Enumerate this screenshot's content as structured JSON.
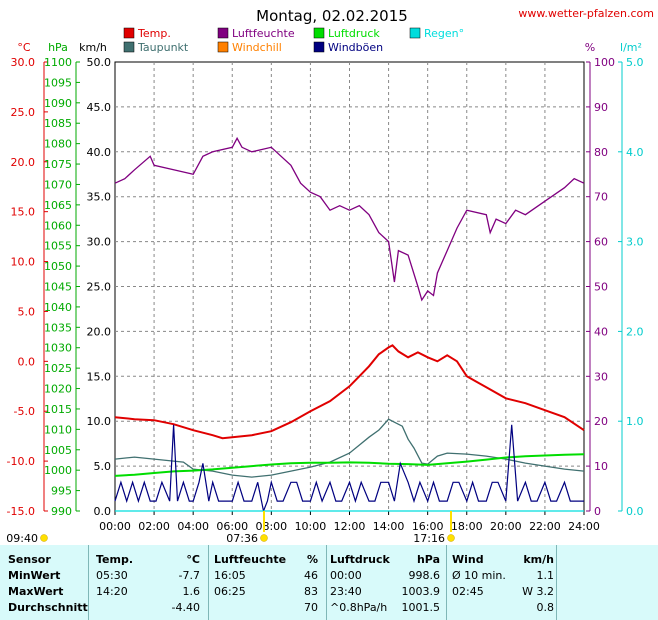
{
  "header": {
    "title": "Montag, 02.02.2015",
    "site": "www.wetter-pfalzen.com"
  },
  "legend": [
    {
      "label": "Temp.",
      "color": "#e00000"
    },
    {
      "label": "Luftfeuchte",
      "color": "#800080"
    },
    {
      "label": "Luftdruck",
      "color": "#00dd00"
    },
    {
      "label": "Regen°",
      "color": "#00dddd"
    },
    {
      "label": "Taupunkt",
      "color": "#407070"
    },
    {
      "label": "Windchill",
      "color": "#ff8000"
    },
    {
      "label": "Windböen",
      "color": "#000080"
    }
  ],
  "axes": {
    "temp": {
      "unit": "°C",
      "color": "#e00000",
      "min": -15,
      "max": 30,
      "ticks": [
        "30.0",
        "25.0",
        "20.0",
        "15.0",
        "10.0",
        "5.0",
        "0.0",
        "-5.0",
        "-10.0",
        "-15.0"
      ]
    },
    "pressure": {
      "unit": "hPa",
      "color": "#00aa00",
      "min": 990,
      "max": 1100,
      "ticks": [
        "1100",
        "1095",
        "1090",
        "1085",
        "1080",
        "1075",
        "1070",
        "1065",
        "1060",
        "1055",
        "1050",
        "1045",
        "1040",
        "1035",
        "1030",
        "1025",
        "1020",
        "1015",
        "1010",
        "1005",
        "1000",
        "995",
        "990"
      ]
    },
    "wind": {
      "unit": "km/h",
      "color": "#000000",
      "min": 0,
      "max": 50,
      "ticks": [
        "50.0",
        "45.0",
        "40.0",
        "35.0",
        "30.0",
        "25.0",
        "20.0",
        "15.0",
        "10.0",
        "5.0",
        "0.0"
      ]
    },
    "humidity": {
      "unit": "%",
      "color": "#800080",
      "min": 0,
      "max": 100,
      "ticks": [
        "100",
        "90",
        "80",
        "70",
        "60",
        "50",
        "40",
        "30",
        "20",
        "10",
        "0"
      ]
    },
    "rain": {
      "unit": "l/m²",
      "color": "#00cccc",
      "min": 0,
      "max": 5,
      "ticks": [
        "5.0",
        "4.0",
        "3.0",
        "2.0",
        "1.0",
        "0.0"
      ]
    },
    "time": {
      "ticks": [
        "00:00",
        "02:00",
        "04:00",
        "06:00",
        "08:00",
        "10:00",
        "12:00",
        "14:00",
        "16:00",
        "18:00",
        "20:00",
        "22:00",
        "24:00"
      ]
    }
  },
  "sun": {
    "moon_time": "09:40",
    "sunrise": "07:36",
    "sunset": "17:16",
    "moon_color": "#ffd000",
    "sun_color": "#ffe000"
  },
  "chart_data": {
    "type": "line",
    "x_unit": "hours",
    "xlim": [
      0,
      24
    ],
    "series": [
      {
        "name": "Temp.",
        "axis": "temp",
        "color": "#e00000",
        "x": [
          0,
          1,
          2,
          3,
          4,
          5,
          5.5,
          6,
          7,
          8,
          9,
          10,
          11,
          12,
          12.5,
          13,
          13.5,
          14,
          14.2,
          14.5,
          15,
          15.5,
          16,
          16.5,
          17,
          17.5,
          18,
          19,
          20,
          21,
          22,
          23,
          24
        ],
        "y": [
          -5.6,
          -5.8,
          -5.9,
          -6.3,
          -6.9,
          -7.4,
          -7.7,
          -7.6,
          -7.4,
          -7.0,
          -6.1,
          -5.0,
          -4.0,
          -2.5,
          -1.5,
          -0.5,
          0.7,
          1.4,
          1.6,
          1.0,
          0.4,
          0.9,
          0.4,
          0.0,
          0.6,
          0.0,
          -1.5,
          -2.6,
          -3.7,
          -4.2,
          -4.9,
          -5.6,
          -6.9
        ]
      },
      {
        "name": "Taupunkt",
        "axis": "temp",
        "color": "#407070",
        "x": [
          0,
          1,
          2,
          3,
          3.5,
          4,
          5,
          6,
          7,
          8,
          9,
          10,
          11,
          12,
          12.5,
          13,
          13.5,
          14,
          14.3,
          14.7,
          15,
          15.3,
          15.7,
          16,
          16.5,
          17,
          18,
          19,
          20,
          21,
          22,
          23,
          24
        ],
        "y": [
          -9.8,
          -9.6,
          -9.8,
          -10.0,
          -10.1,
          -10.8,
          -11.0,
          -11.4,
          -11.6,
          -11.4,
          -11.0,
          -10.6,
          -10.1,
          -9.2,
          -8.4,
          -7.6,
          -6.9,
          -5.8,
          -6.1,
          -6.5,
          -7.8,
          -8.7,
          -10.2,
          -10.3,
          -9.5,
          -9.2,
          -9.3,
          -9.5,
          -9.8,
          -10.2,
          -10.5,
          -10.8,
          -11.0
        ]
      },
      {
        "name": "Luftfeuchte",
        "axis": "humidity",
        "color": "#800080",
        "x": [
          0,
          0.5,
          1,
          1.8,
          2,
          3,
          4,
          4.5,
          5,
          6,
          6.25,
          6.5,
          7,
          8,
          8.5,
          9,
          9.5,
          10,
          10.5,
          11,
          11.5,
          12,
          12.5,
          13,
          13.5,
          14,
          14.3,
          14.5,
          15,
          15.5,
          15.7,
          16,
          16.3,
          16.5,
          17,
          17.5,
          18,
          19,
          19.2,
          19.5,
          20,
          20.5,
          21,
          22,
          23,
          23.5,
          24
        ],
        "y": [
          73,
          74,
          76,
          79,
          77,
          76,
          75,
          79,
          80,
          81,
          83,
          81,
          80,
          81,
          79,
          77,
          73,
          71,
          70,
          67,
          68,
          67,
          68,
          66,
          62,
          60,
          51,
          58,
          57,
          50,
          47,
          49,
          48,
          53,
          58,
          63,
          67,
          66,
          62,
          65,
          64,
          67,
          66,
          69,
          72,
          74,
          73
        ]
      },
      {
        "name": "Luftdruck",
        "axis": "pressure",
        "color": "#00dd00",
        "x": [
          0,
          1,
          2,
          3,
          4,
          5,
          6,
          7,
          8,
          9,
          10,
          11,
          12,
          13,
          14,
          15,
          16,
          17,
          18,
          19,
          20,
          21,
          22,
          23,
          24
        ],
        "y": [
          998.6,
          998.9,
          999.3,
          999.7,
          999.9,
          1000.2,
          1000.6,
          1001.0,
          1001.4,
          1001.7,
          1001.8,
          1001.8,
          1001.9,
          1001.8,
          1001.6,
          1001.5,
          1001.3,
          1001.7,
          1002.1,
          1002.6,
          1003.1,
          1003.4,
          1003.6,
          1003.8,
          1003.9
        ]
      },
      {
        "name": "Windböen",
        "axis": "wind",
        "color": "#000080",
        "x": [
          0,
          0.3,
          0.6,
          0.9,
          1.2,
          1.5,
          1.8,
          2.1,
          2.4,
          2.8,
          3.0,
          3.2,
          3.5,
          3.8,
          4.0,
          4.3,
          4.5,
          4.8,
          5.0,
          5.3,
          5.6,
          6.0,
          6.3,
          6.6,
          7.0,
          7.3,
          7.6,
          7.8,
          8.0,
          8.3,
          8.6,
          9.0,
          9.3,
          9.6,
          10.0,
          10.3,
          10.6,
          11.0,
          11.3,
          11.6,
          12.0,
          12.3,
          12.6,
          13.0,
          13.3,
          13.6,
          14.0,
          14.3,
          14.6,
          15.0,
          15.3,
          15.6,
          16.0,
          16.3,
          16.6,
          17.0,
          17.3,
          17.6,
          18.0,
          18.3,
          18.6,
          19.0,
          19.3,
          19.6,
          20.0,
          20.3,
          20.6,
          21.0,
          21.3,
          21.6,
          22.0,
          22.3,
          22.6,
          23.0,
          23.3,
          23.6,
          24.0
        ],
        "y": [
          1.1,
          3.2,
          1.1,
          3.2,
          1.1,
          3.2,
          1.1,
          1.1,
          3.2,
          1.1,
          9.6,
          1.1,
          3.2,
          1.1,
          1.1,
          3.2,
          5.3,
          1.1,
          3.2,
          1.1,
          1.1,
          1.1,
          3.2,
          1.1,
          1.1,
          3.2,
          0.0,
          1.1,
          3.2,
          1.1,
          1.1,
          3.2,
          3.2,
          1.1,
          1.1,
          3.2,
          1.1,
          3.2,
          1.1,
          1.1,
          3.2,
          1.1,
          3.2,
          1.1,
          1.1,
          3.2,
          3.2,
          1.1,
          5.3,
          3.2,
          1.1,
          3.2,
          1.1,
          3.2,
          1.1,
          1.1,
          3.2,
          3.2,
          1.1,
          3.2,
          1.1,
          1.1,
          3.2,
          3.2,
          1.1,
          9.6,
          1.1,
          3.2,
          1.1,
          1.1,
          3.2,
          1.1,
          1.1,
          3.2,
          1.1,
          1.1,
          1.1
        ]
      },
      {
        "name": "Regen°",
        "axis": "rain",
        "color": "#00dddd",
        "x": [
          0,
          24
        ],
        "y": [
          0,
          0
        ]
      }
    ]
  },
  "table": {
    "headers": [
      "Sensor",
      "Temp.",
      "°C",
      "Luftfeuchte",
      "%",
      "Luftdruck",
      "hPa",
      "Wind",
      "km/h"
    ],
    "rows": [
      [
        "MinWert",
        "05:30",
        "-7.7",
        "16:05",
        "46",
        "00:00",
        "998.6",
        "Ø 10 min.",
        "1.1"
      ],
      [
        "MaxWert",
        "14:20",
        "1.6",
        "06:25",
        "83",
        "23:40",
        "1003.9",
        "02:45",
        "W 3.2"
      ],
      [
        "Durchschnitt",
        "",
        "-4.40",
        "",
        "70",
        "^0.8hPa/h",
        "1001.5",
        "",
        "0.8"
      ]
    ]
  }
}
